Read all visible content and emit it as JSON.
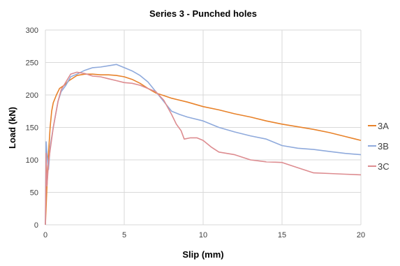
{
  "chart_data": {
    "type": "line",
    "title": "Series 3 - Punched holes",
    "xlabel": "Slip (mm)",
    "ylabel": "Load (kN)",
    "xlim": [
      0,
      20
    ],
    "ylim": [
      0,
      300
    ],
    "x_ticks": [
      "0",
      "5",
      "10",
      "15",
      "20"
    ],
    "y_ticks": [
      "0",
      "50",
      "100",
      "150",
      "200",
      "250",
      "300"
    ],
    "grid": true,
    "legend_position": "right",
    "series": [
      {
        "name": "3A",
        "color": "#E8822A",
        "points": [
          [
            0,
            0
          ],
          [
            0.1,
            60
          ],
          [
            0.2,
            110
          ],
          [
            0.3,
            150
          ],
          [
            0.4,
            175
          ],
          [
            0.5,
            188
          ],
          [
            0.7,
            200
          ],
          [
            0.9,
            210
          ],
          [
            1.2,
            215
          ],
          [
            1.5,
            222
          ],
          [
            2.0,
            230
          ],
          [
            2.5,
            232
          ],
          [
            3.0,
            232
          ],
          [
            3.5,
            231
          ],
          [
            4.0,
            231
          ],
          [
            4.5,
            230
          ],
          [
            5.0,
            228
          ],
          [
            5.5,
            224
          ],
          [
            6.0,
            218
          ],
          [
            6.5,
            210
          ],
          [
            7.0,
            203
          ],
          [
            7.5,
            199
          ],
          [
            8,
            195
          ],
          [
            9,
            189
          ],
          [
            10,
            182
          ],
          [
            11,
            177
          ],
          [
            12,
            171
          ],
          [
            13,
            166
          ],
          [
            14,
            160
          ],
          [
            15,
            155
          ],
          [
            16,
            151
          ],
          [
            17,
            147
          ],
          [
            18,
            142
          ],
          [
            19,
            136
          ],
          [
            20,
            130
          ]
        ]
      },
      {
        "name": "3B",
        "color": "#8FAADC",
        "points": [
          [
            0,
            0
          ],
          [
            0.05,
            128
          ],
          [
            0.1,
            110
          ],
          [
            0.2,
            85
          ],
          [
            0.3,
            120
          ],
          [
            0.5,
            150
          ],
          [
            0.8,
            190
          ],
          [
            1.0,
            205
          ],
          [
            1.3,
            215
          ],
          [
            1.6,
            228
          ],
          [
            2.0,
            232
          ],
          [
            2.5,
            238
          ],
          [
            3.0,
            242
          ],
          [
            3.5,
            243
          ],
          [
            4.0,
            245
          ],
          [
            4.5,
            247
          ],
          [
            5.0,
            242
          ],
          [
            5.5,
            237
          ],
          [
            6.0,
            230
          ],
          [
            6.5,
            220
          ],
          [
            7.0,
            205
          ],
          [
            7.5,
            190
          ],
          [
            8.0,
            175
          ],
          [
            8.5,
            170
          ],
          [
            9,
            166
          ],
          [
            10,
            160
          ],
          [
            11,
            150
          ],
          [
            12,
            143
          ],
          [
            13,
            137
          ],
          [
            14,
            132
          ],
          [
            15,
            122
          ],
          [
            16,
            118
          ],
          [
            17,
            116
          ],
          [
            18,
            113
          ],
          [
            19,
            110
          ],
          [
            20,
            108
          ]
        ]
      },
      {
        "name": "3C",
        "color": "#DD8C90",
        "points": [
          [
            0,
            0
          ],
          [
            0.05,
            110
          ],
          [
            0.1,
            60
          ],
          [
            0.2,
            95
          ],
          [
            0.3,
            115
          ],
          [
            0.5,
            150
          ],
          [
            0.8,
            190
          ],
          [
            1.0,
            208
          ],
          [
            1.3,
            220
          ],
          [
            1.6,
            232
          ],
          [
            2.0,
            235
          ],
          [
            2.5,
            233
          ],
          [
            3.0,
            229
          ],
          [
            3.5,
            228
          ],
          [
            4.0,
            225
          ],
          [
            4.5,
            222
          ],
          [
            5.0,
            219
          ],
          [
            5.5,
            218
          ],
          [
            6.0,
            215
          ],
          [
            6.5,
            210
          ],
          [
            7.0,
            205
          ],
          [
            7.5,
            192
          ],
          [
            8.0,
            170
          ],
          [
            8.3,
            155
          ],
          [
            8.6,
            145
          ],
          [
            8.8,
            132
          ],
          [
            9.2,
            134
          ],
          [
            9.6,
            134
          ],
          [
            10,
            130
          ],
          [
            10.5,
            120
          ],
          [
            11,
            112
          ],
          [
            12,
            108
          ],
          [
            13,
            100
          ],
          [
            14,
            97
          ],
          [
            15,
            96
          ],
          [
            16,
            88
          ],
          [
            17,
            80
          ],
          [
            18,
            79
          ],
          [
            19,
            78
          ],
          [
            20,
            77
          ]
        ]
      }
    ]
  }
}
